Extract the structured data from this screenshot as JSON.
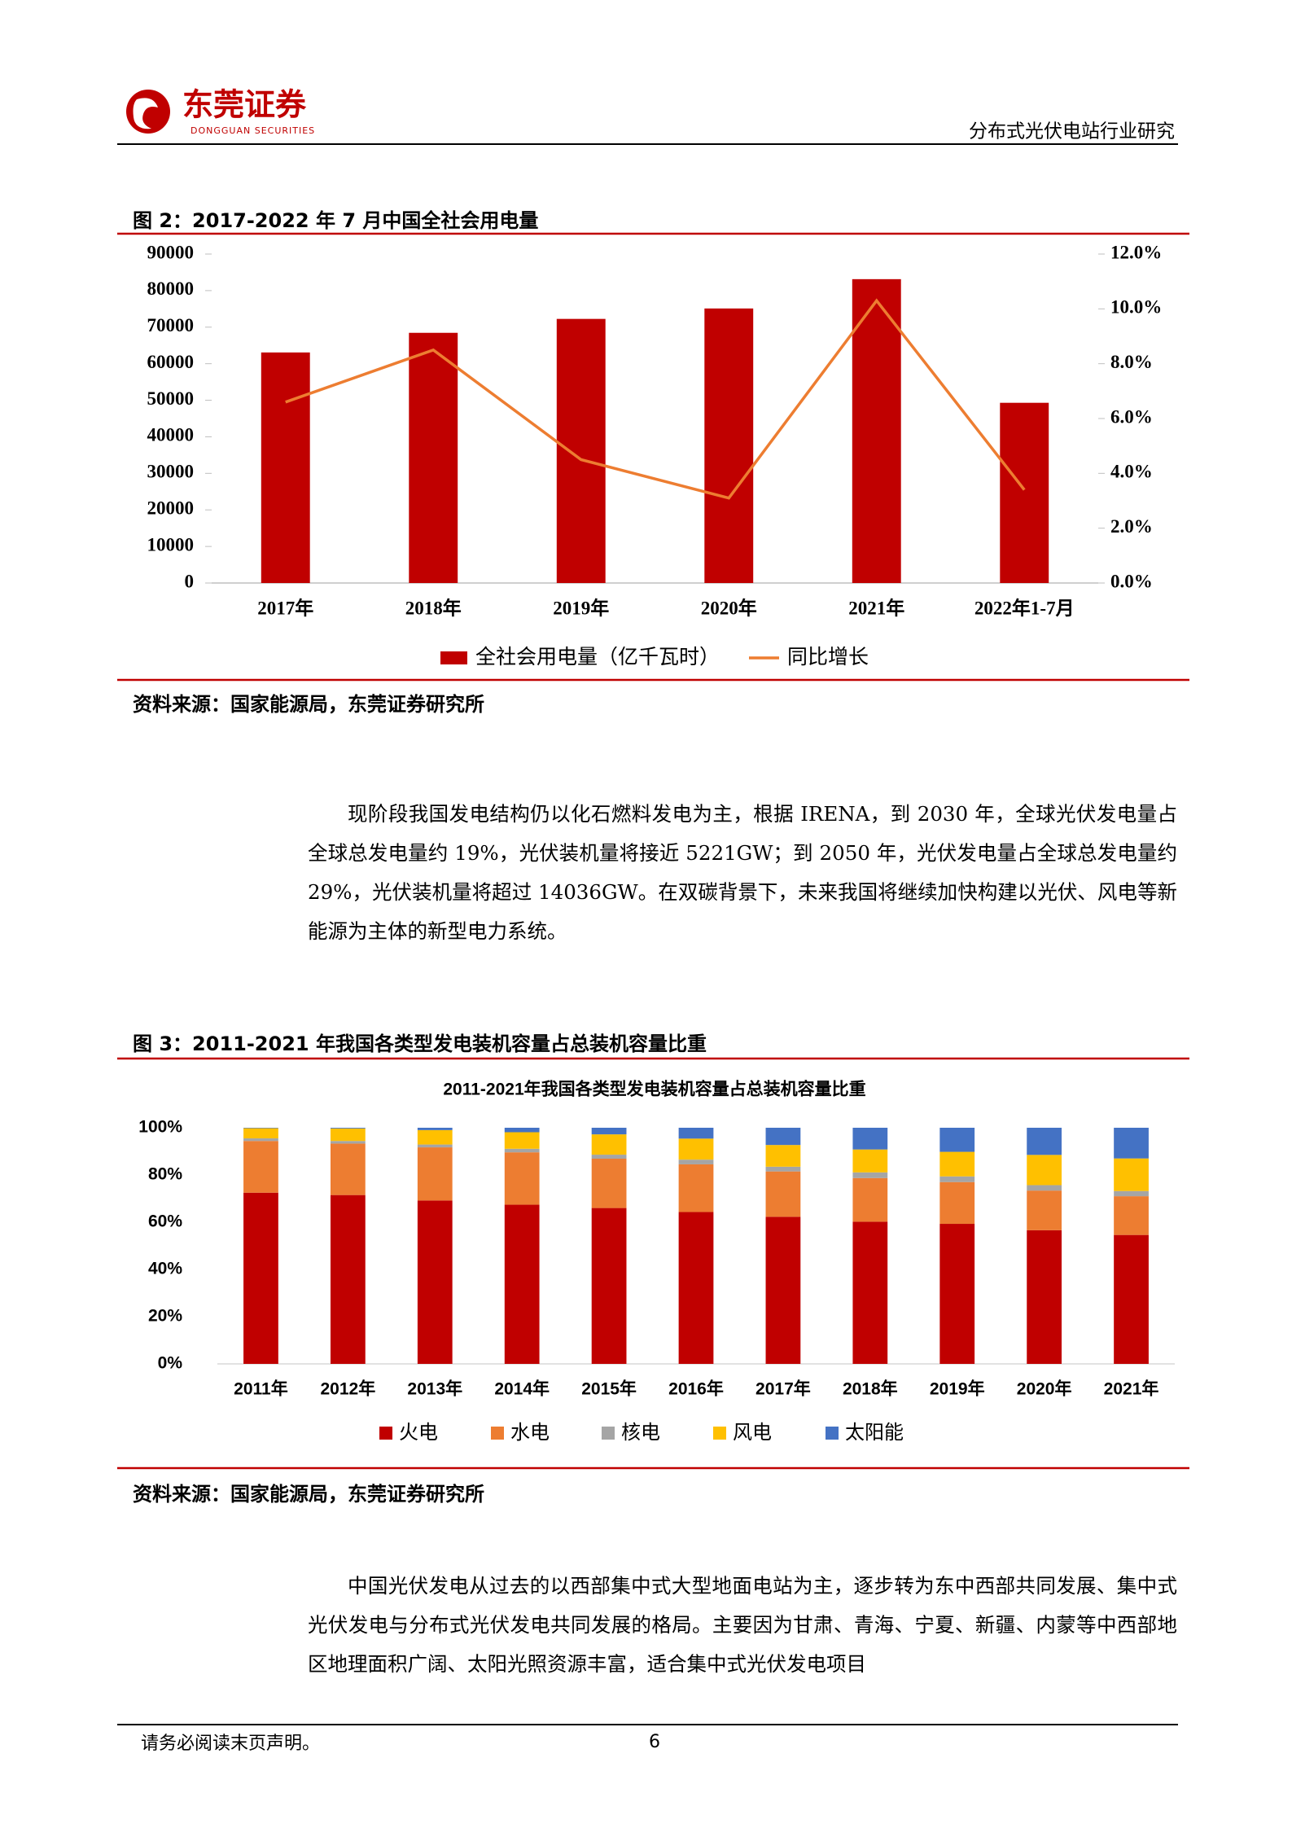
{
  "header": {
    "logo_text": "东莞证券",
    "logo_sub": "DONGGUAN SECURITIES",
    "report_title": "分布式光伏电站行业研究"
  },
  "figures": [
    {
      "caption": "图 2：2017-2022 年 7 月中国全社会用电量",
      "source": "资料来源：国家能源局，东莞证券研究所"
    },
    {
      "caption": "图 3：2011-2021 年我国各类型发电装机容量占总装机容量比重",
      "source": "资料来源：国家能源局，东莞证券研究所"
    }
  ],
  "chart_data": [
    {
      "type": "combo",
      "categories": [
        "2017年",
        "2018年",
        "2019年",
        "2020年",
        "2021年",
        "2022年1-7月"
      ],
      "series": [
        {
          "name": "全社会用电量（亿千瓦时）",
          "type": "bar",
          "color": "#c00000",
          "values": [
            63077,
            68449,
            72255,
            75110,
            83128,
            49303
          ]
        },
        {
          "name": "同比增长",
          "type": "line",
          "axis": "y2",
          "color": "#ed7d31",
          "values": [
            6.6,
            8.5,
            4.5,
            3.1,
            10.3,
            3.4
          ]
        }
      ],
      "ylim": [
        0,
        90000
      ],
      "yticks": [
        0,
        10000,
        20000,
        30000,
        40000,
        50000,
        60000,
        70000,
        80000,
        90000
      ],
      "y2lim": [
        0,
        12
      ],
      "y2ticks": [
        {
          "value": 0,
          "label": "0.0%"
        },
        {
          "value": 2,
          "label": "2.0%"
        },
        {
          "value": 4,
          "label": "4.0%"
        },
        {
          "value": 6,
          "label": "6.0%"
        },
        {
          "value": 8,
          "label": "8.0%"
        },
        {
          "value": 10,
          "label": "10.0%"
        },
        {
          "value": 12,
          "label": "12.0%"
        }
      ],
      "grid": false,
      "legend": "bottom"
    },
    {
      "type": "stacked-bar",
      "title": "2011-2021年我国各类型发电装机容量占总装机容量比重",
      "categories": [
        "2011年",
        "2012年",
        "2013年",
        "2014年",
        "2015年",
        "2016年",
        "2017年",
        "2018年",
        "2019年",
        "2020年",
        "2021年"
      ],
      "series": [
        {
          "name": "火电",
          "color": "#c00000",
          "values": [
            72.5,
            71.5,
            69.2,
            67.4,
            66.0,
            64.3,
            62.3,
            60.2,
            59.3,
            56.6,
            54.6
          ]
        },
        {
          "name": "水电",
          "color": "#ed7d31",
          "values": [
            21.9,
            21.8,
            22.5,
            22.2,
            20.9,
            20.2,
            19.2,
            18.5,
            17.7,
            16.8,
            16.4
          ]
        },
        {
          "name": "核电",
          "color": "#a5a5a5",
          "values": [
            1.1,
            1.1,
            1.2,
            1.5,
            1.7,
            2.0,
            2.0,
            2.4,
            2.4,
            2.3,
            2.2
          ]
        },
        {
          "name": "风电",
          "color": "#ffc000",
          "values": [
            4.3,
            5.3,
            6.1,
            7.0,
            8.6,
            8.9,
            9.2,
            9.7,
            10.4,
            12.8,
            13.8
          ]
        },
        {
          "name": "太阳能",
          "color": "#4472c4",
          "values": [
            0.2,
            0.3,
            1.0,
            1.9,
            2.8,
            4.6,
            7.3,
            9.2,
            10.2,
            11.5,
            13.0
          ]
        }
      ],
      "ylim": [
        0,
        100
      ],
      "yticks": [
        {
          "value": 0,
          "label": "0%"
        },
        {
          "value": 20,
          "label": "20%"
        },
        {
          "value": 40,
          "label": "40%"
        },
        {
          "value": 60,
          "label": "60%"
        },
        {
          "value": 80,
          "label": "80%"
        },
        {
          "value": 100,
          "label": "100%"
        }
      ],
      "grid": false,
      "legend": "bottom"
    }
  ],
  "paragraphs": [
    "现阶段我国发电结构仍以化石燃料发电为主，根据 IRENA，到 2030 年，全球光伏发电量占全球总发电量约 19%，光伏装机量将接近 5221GW；到 2050 年，光伏发电量占全球总发电量约 29%，光伏装机量将超过 14036GW。在双碳背景下，未来我国将继续加快构建以光伏、风电等新能源为主体的新型电力系统。",
    "中国光伏发电从过去的以西部集中式大型地面电站为主，逐步转为东中西部共同发展、集中式光伏发电与分布式光伏发电共同发展的格局。主要因为甘肃、青海、宁夏、新疆、内蒙等中西部地区地理面积广阔、太阳光照资源丰富，适合集中式光伏发电项目"
  ],
  "footer": {
    "disclaimer": "请务必阅读末页声明。",
    "page": 6
  }
}
